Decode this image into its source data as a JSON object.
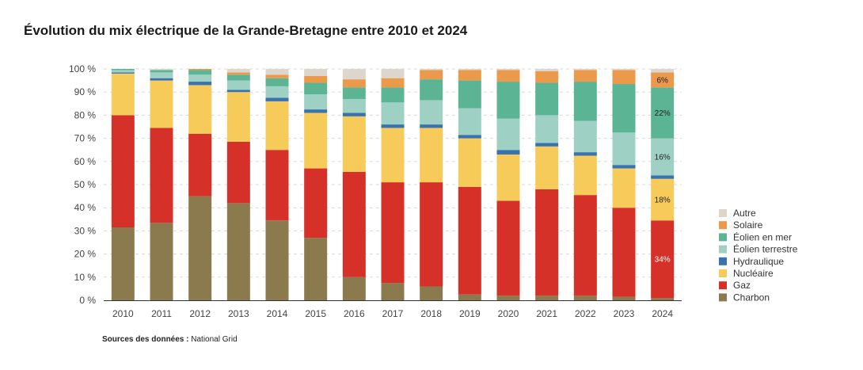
{
  "title": "Évolution du mix électrique de la Grande-Bretagne entre 2010 et 2024",
  "source_label": "Sources des données :",
  "source_value": "National Grid",
  "chart_data": {
    "type": "bar",
    "stacked": true,
    "categories": [
      "2010",
      "2011",
      "2012",
      "2013",
      "2014",
      "2015",
      "2016",
      "2017",
      "2018",
      "2019",
      "2020",
      "2021",
      "2022",
      "2023",
      "2024"
    ],
    "ylim": [
      0,
      100
    ],
    "yticks": [
      0,
      10,
      20,
      30,
      40,
      50,
      60,
      70,
      80,
      90,
      100
    ],
    "ytick_labels": [
      "0 %",
      "10 %",
      "20 %",
      "30 %",
      "40 %",
      "50 %",
      "60 %",
      "70 %",
      "80 %",
      "90 %",
      "100 %"
    ],
    "grid": true,
    "legend_position": "right",
    "series": [
      {
        "name": "Charbon",
        "color": "#8a7a4e",
        "values": [
          31.5,
          33.5,
          45,
          42,
          34.5,
          27,
          10,
          7.5,
          6,
          2.5,
          2,
          2,
          2,
          1.5,
          1
        ]
      },
      {
        "name": "Gaz",
        "color": "#d63129",
        "values": [
          48.5,
          41,
          27,
          26.5,
          30.5,
          30,
          45.5,
          43.5,
          45,
          46.5,
          41,
          46,
          43.5,
          38.5,
          33.5
        ]
      },
      {
        "name": "Nucléaire",
        "color": "#f6cb5a",
        "values": [
          18,
          20.5,
          21,
          21.5,
          21,
          24,
          24,
          23.5,
          23.5,
          21,
          20,
          18.5,
          17,
          17,
          18
        ]
      },
      {
        "name": "Hydraulique",
        "color": "#3a72b0",
        "values": [
          0.5,
          1,
          1.5,
          1,
          1.5,
          1.5,
          1.5,
          1.5,
          1.5,
          1.5,
          2,
          1.5,
          1.5,
          1.5,
          1.5
        ]
      },
      {
        "name": "Éolien terrestre",
        "color": "#9fd0c4",
        "values": [
          1,
          2.5,
          3,
          4,
          5,
          6.5,
          6,
          9.5,
          10.5,
          11.5,
          13.5,
          12,
          13.5,
          14,
          16
        ]
      },
      {
        "name": "Éolien en mer",
        "color": "#5bb494",
        "values": [
          0.5,
          1,
          2,
          2.5,
          3.5,
          5,
          5,
          6.5,
          9,
          12,
          16,
          14,
          17,
          21,
          22
        ]
      },
      {
        "name": "Solaire",
        "color": "#ea9a4a",
        "values": [
          0,
          0,
          0.5,
          1,
          1.5,
          3,
          3.5,
          4,
          4,
          4.5,
          5,
          5,
          5,
          6,
          6.5
        ]
      },
      {
        "name": "Autre",
        "color": "#dcd6cc",
        "values": [
          0,
          0.5,
          0,
          1.5,
          2.5,
          3,
          4.5,
          4,
          0.5,
          0.5,
          0.5,
          1,
          0.5,
          0.5,
          1.5
        ]
      }
    ],
    "annotations": [
      {
        "category": "2024",
        "series": "Gaz",
        "text": "34%",
        "color": "#ffffff"
      },
      {
        "category": "2024",
        "series": "Nucléaire",
        "text": "18%",
        "color": "#222222"
      },
      {
        "category": "2024",
        "series": "Éolien terrestre",
        "text": "16%",
        "color": "#222222"
      },
      {
        "category": "2024",
        "series": "Éolien en mer",
        "text": "22%",
        "color": "#222222"
      },
      {
        "category": "2024",
        "series": "Solaire",
        "text": "6%",
        "color": "#222222"
      }
    ]
  }
}
